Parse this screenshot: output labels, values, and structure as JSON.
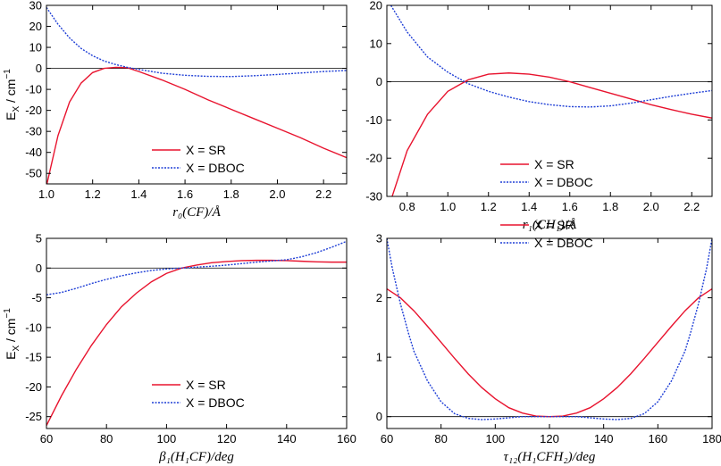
{
  "figure": {
    "ylabel": "E",
    "ylabel_sub": "X",
    "ylabel_unit": " / cm",
    "ylabel_sup": "−1"
  },
  "chart_data": [
    {
      "type": "line",
      "xlabel": "r₀(CF)/Å",
      "xlim": [
        1.0,
        2.3
      ],
      "ylim": [
        -55,
        30
      ],
      "xticks": [
        1.0,
        1.2,
        1.4,
        1.6,
        1.8,
        2.0,
        2.2
      ],
      "xtick_labels": [
        "1.0",
        "1.2",
        "1.4",
        "1.6",
        "1.8",
        "2.0",
        "2.2"
      ],
      "yticks": [
        -50,
        -40,
        -30,
        -20,
        -10,
        0,
        10,
        20,
        30
      ],
      "ytick_labels": [
        "-50",
        "-40",
        "-30",
        "-20",
        "-10",
        "0",
        "10",
        "20",
        "30"
      ],
      "legend": "lower-center",
      "series": [
        {
          "name": "X = SR",
          "color": "#e8132e",
          "dash": "solid",
          "x": [
            1.0,
            1.05,
            1.1,
            1.15,
            1.2,
            1.25,
            1.3,
            1.35,
            1.4,
            1.5,
            1.6,
            1.7,
            1.8,
            1.9,
            2.0,
            2.1,
            2.2,
            2.3
          ],
          "y": [
            -56,
            -32,
            -16,
            -7,
            -2,
            0,
            0.5,
            0.3,
            -1.5,
            -5.5,
            -10,
            -15,
            -19.5,
            -24,
            -28.5,
            -33,
            -38,
            -42.5
          ]
        },
        {
          "name": "X = DBOC",
          "color": "#1f3fd6",
          "dash": "dotted",
          "x": [
            1.0,
            1.05,
            1.1,
            1.15,
            1.2,
            1.25,
            1.3,
            1.35,
            1.4,
            1.5,
            1.6,
            1.7,
            1.8,
            1.9,
            2.0,
            2.1,
            2.2,
            2.3
          ],
          "y": [
            29,
            21,
            14.5,
            9.5,
            6,
            3.5,
            1.8,
            0.5,
            -0.5,
            -2.3,
            -3.3,
            -3.8,
            -3.9,
            -3.5,
            -2.9,
            -2.2,
            -1.5,
            -1
          ]
        }
      ]
    },
    {
      "type": "line",
      "xlabel": "r₁(CH₁)/Å",
      "xlim": [
        0.7,
        2.3
      ],
      "ylim": [
        -30,
        20
      ],
      "xticks": [
        0.8,
        1.0,
        1.2,
        1.4,
        1.6,
        1.8,
        2.0,
        2.2
      ],
      "xtick_labels": [
        "0.8",
        "1.0",
        "1.2",
        "1.4",
        "1.6",
        "1.8",
        "2.0",
        "2.2"
      ],
      "yticks": [
        -30,
        -20,
        -10,
        0,
        10,
        20
      ],
      "ytick_labels": [
        "-30",
        "-20",
        "-10",
        "0",
        "10",
        "20"
      ],
      "legend": "lower-center",
      "series": [
        {
          "name": "X = SR",
          "color": "#e8132e",
          "dash": "solid",
          "x": [
            0.72,
            0.8,
            0.9,
            1.0,
            1.1,
            1.2,
            1.3,
            1.4,
            1.5,
            1.6,
            1.7,
            1.8,
            1.9,
            2.0,
            2.1,
            2.2,
            2.3
          ],
          "y": [
            -31,
            -18,
            -8.5,
            -2.5,
            0.5,
            2,
            2.3,
            2,
            1.2,
            0,
            -1.5,
            -3,
            -4.5,
            -6,
            -7.3,
            -8.5,
            -9.5
          ]
        },
        {
          "name": "X = DBOC",
          "color": "#1f3fd6",
          "dash": "dotted",
          "x": [
            0.72,
            0.8,
            0.9,
            1.0,
            1.1,
            1.2,
            1.3,
            1.4,
            1.5,
            1.6,
            1.7,
            1.8,
            1.9,
            2.0,
            2.1,
            2.2,
            2.3
          ],
          "y": [
            20,
            13,
            6.5,
            2.5,
            -0.5,
            -2.5,
            -4,
            -5.2,
            -6,
            -6.5,
            -6.6,
            -6.3,
            -5.6,
            -4.7,
            -3.8,
            -3,
            -2.3
          ]
        }
      ]
    },
    {
      "type": "line",
      "xlabel": "β₁(H₁CF)/deg",
      "xlim": [
        60,
        160
      ],
      "ylim": [
        -27,
        5
      ],
      "xticks": [
        60,
        80,
        100,
        120,
        140,
        160
      ],
      "xtick_labels": [
        "60",
        "80",
        "100",
        "120",
        "140",
        "160"
      ],
      "yticks": [
        -25,
        -20,
        -15,
        -10,
        -5,
        0,
        5
      ],
      "ytick_labels": [
        "-25",
        "-20",
        "-15",
        "-10",
        "-5",
        "0",
        "5"
      ],
      "legend": "lower-center",
      "series": [
        {
          "name": "X = SR",
          "color": "#e8132e",
          "dash": "solid",
          "x": [
            60,
            65,
            70,
            75,
            80,
            85,
            90,
            95,
            100,
            105,
            110,
            115,
            120,
            125,
            130,
            135,
            140,
            145,
            150,
            155,
            160
          ],
          "y": [
            -26.5,
            -21.5,
            -17,
            -13,
            -9.5,
            -6.5,
            -4.2,
            -2.3,
            -0.9,
            0,
            0.5,
            0.9,
            1.1,
            1.25,
            1.3,
            1.3,
            1.25,
            1.15,
            1.05,
            1,
            1
          ]
        },
        {
          "name": "X = DBOC",
          "color": "#1f3fd6",
          "dash": "dotted",
          "x": [
            60,
            65,
            70,
            75,
            80,
            85,
            90,
            95,
            100,
            105,
            110,
            115,
            120,
            125,
            130,
            135,
            140,
            145,
            150,
            155,
            160
          ],
          "y": [
            -4.5,
            -4.1,
            -3.4,
            -2.6,
            -1.9,
            -1.3,
            -0.8,
            -0.4,
            -0.15,
            0,
            0.15,
            0.3,
            0.5,
            0.75,
            1,
            1.2,
            1.4,
            1.9,
            2.6,
            3.5,
            4.5
          ]
        }
      ]
    },
    {
      "type": "line",
      "xlabel": "τ₁₂(H₁CFH₂)/deg",
      "xlim": [
        60,
        180
      ],
      "ylim": [
        -0.2,
        3
      ],
      "xticks": [
        60,
        80,
        100,
        120,
        140,
        160,
        180
      ],
      "xtick_labels": [
        "60",
        "80",
        "100",
        "120",
        "140",
        "160",
        "180"
      ],
      "yticks": [
        0,
        1,
        2,
        3
      ],
      "ytick_labels": [
        "0",
        "1",
        "2",
        "3"
      ],
      "legend": "upper-center",
      "series": [
        {
          "name": "X = SR",
          "color": "#e8132e",
          "dash": "solid",
          "x": [
            60,
            65,
            70,
            75,
            80,
            85,
            90,
            95,
            100,
            105,
            110,
            115,
            120,
            125,
            130,
            135,
            140,
            145,
            150,
            155,
            160,
            165,
            170,
            175,
            180
          ],
          "y": [
            2.15,
            2.0,
            1.78,
            1.52,
            1.25,
            0.98,
            0.72,
            0.49,
            0.3,
            0.15,
            0.06,
            0.01,
            0,
            0.01,
            0.06,
            0.15,
            0.3,
            0.49,
            0.72,
            0.98,
            1.25,
            1.52,
            1.78,
            2.0,
            2.15
          ]
        },
        {
          "name": "X = DBOC",
          "color": "#1f3fd6",
          "dash": "dotted",
          "x": [
            60,
            62,
            65,
            68,
            70,
            75,
            80,
            85,
            90,
            95,
            100,
            105,
            110,
            115,
            120,
            125,
            130,
            135,
            140,
            145,
            150,
            155,
            160,
            165,
            170,
            172,
            175,
            178,
            180
          ],
          "y": [
            3.0,
            2.5,
            1.9,
            1.4,
            1.1,
            0.6,
            0.25,
            0.05,
            -0.03,
            -0.05,
            -0.04,
            -0.02,
            0,
            0,
            0,
            0,
            0,
            -0.02,
            -0.04,
            -0.05,
            -0.03,
            0.05,
            0.25,
            0.6,
            1.1,
            1.4,
            1.9,
            2.5,
            3.0
          ]
        }
      ]
    }
  ]
}
